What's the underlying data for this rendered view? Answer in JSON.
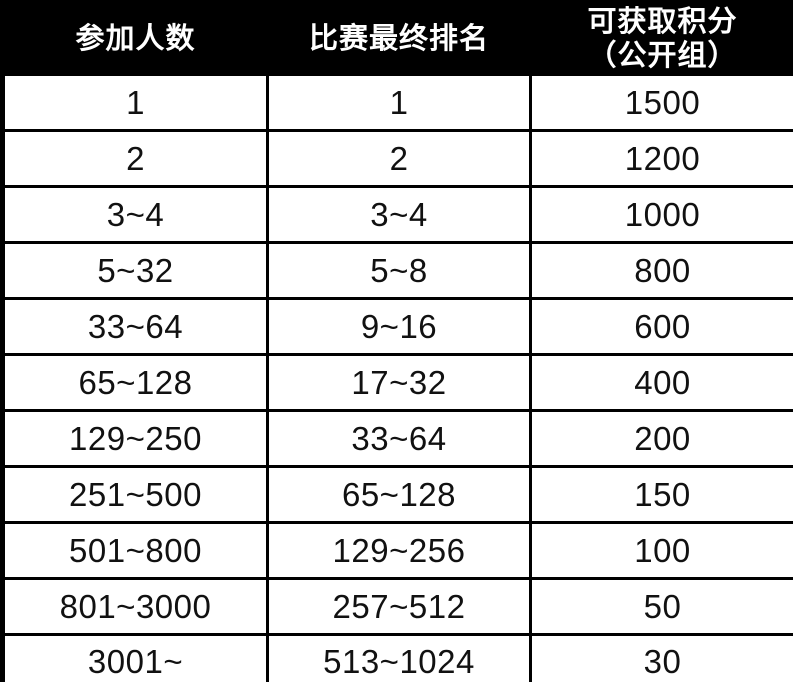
{
  "table": {
    "columns": [
      "参加人数",
      "比赛最终排名",
      "可获取积分\n（公开组）"
    ],
    "rows": [
      [
        "1",
        "1",
        "1500"
      ],
      [
        "2",
        "2",
        "1200"
      ],
      [
        "3~4",
        "3~4",
        "1000"
      ],
      [
        "5~32",
        "5~8",
        "800"
      ],
      [
        "33~64",
        "9~16",
        "600"
      ],
      [
        "65~128",
        "17~32",
        "400"
      ],
      [
        "129~250",
        "33~64",
        "200"
      ],
      [
        "251~500",
        "65~128",
        "150"
      ],
      [
        "501~800",
        "129~256",
        "100"
      ],
      [
        "801~3000",
        "257~512",
        "50"
      ],
      [
        "3001~",
        "513~1024",
        "30"
      ]
    ],
    "colors": {
      "header_bg": "#000000",
      "header_text": "#ffffff",
      "body_bg": "#ffffff",
      "body_text": "#111111",
      "border": "#000000"
    }
  }
}
